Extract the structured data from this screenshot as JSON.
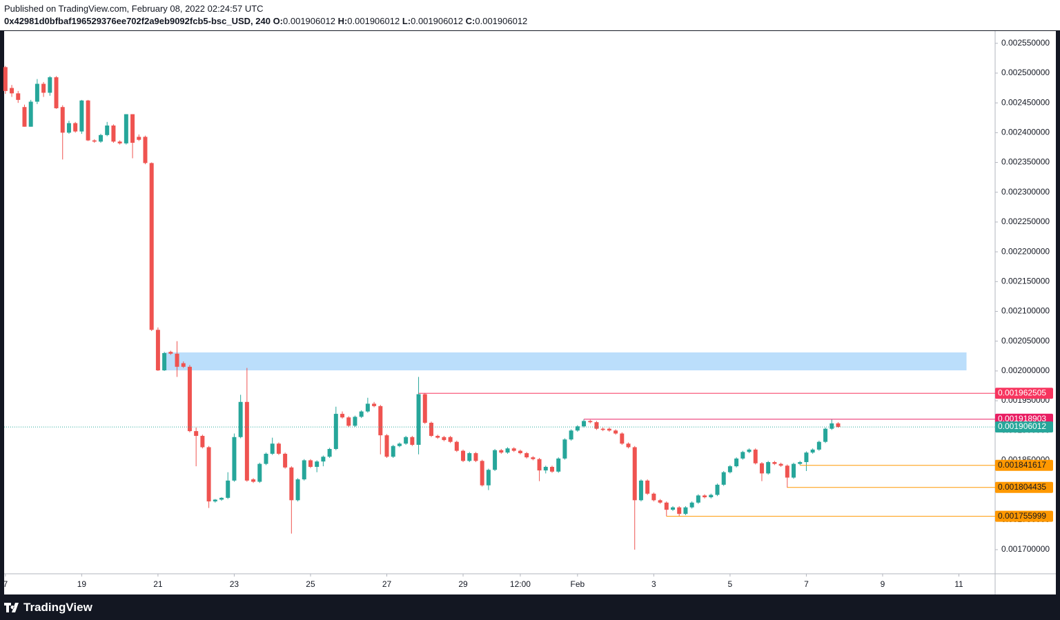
{
  "header": {
    "published": "Published on TradingView.com, February 08, 2022 02:24:57 UTC",
    "symbol": "0x42981d0bfbaf196529376ee702f2a9eb9092fcb5-bsc_USD, 240",
    "ohlc": [
      {
        "label": "O:",
        "value": "0.001906012"
      },
      {
        "label": "H:",
        "value": "0.001906012"
      },
      {
        "label": "L:",
        "value": "0.001906012"
      },
      {
        "label": "C:",
        "value": "0.001906012"
      }
    ]
  },
  "footer": {
    "brand": "TradingView"
  },
  "chart_data": {
    "type": "candlestick",
    "up_color": "#26a69a",
    "down_color": "#ef5350",
    "xlim": [
      -0.2,
      155.7
    ],
    "ylim": [
      0.0016595,
      0.0025706
    ],
    "xticks": [
      {
        "value": 0,
        "label": "7"
      },
      {
        "value": 12,
        "label": "19"
      },
      {
        "value": 24,
        "label": "21"
      },
      {
        "value": 36,
        "label": "23"
      },
      {
        "value": 48,
        "label": "25"
      },
      {
        "value": 60,
        "label": "27"
      },
      {
        "value": 72,
        "label": "29"
      },
      {
        "value": 81,
        "label": "12:00"
      },
      {
        "value": 90,
        "label": "Feb"
      },
      {
        "value": 102,
        "label": "3"
      },
      {
        "value": 114,
        "label": "5"
      },
      {
        "value": 126,
        "label": "7"
      },
      {
        "value": 138,
        "label": "9"
      },
      {
        "value": 150,
        "label": "11"
      }
    ],
    "yticks": [
      {
        "value": 0.0017,
        "label": "0.001700000"
      },
      {
        "value": 0.00175,
        "label": "0.001750000"
      },
      {
        "value": 0.0018,
        "label": "0.001800000"
      },
      {
        "value": 0.00185,
        "label": "0.001850000"
      },
      {
        "value": 0.0019,
        "label": "0.001900000"
      },
      {
        "value": 0.00195,
        "label": "0.001950000"
      },
      {
        "value": 0.002,
        "label": "0.002000000"
      },
      {
        "value": 0.00205,
        "label": "0.002050000"
      },
      {
        "value": 0.0021,
        "label": "0.002100000"
      },
      {
        "value": 0.00215,
        "label": "0.002150000"
      },
      {
        "value": 0.0022,
        "label": "0.002200000"
      },
      {
        "value": 0.00225,
        "label": "0.002250000"
      },
      {
        "value": 0.0023,
        "label": "0.002300000"
      },
      {
        "value": 0.00235,
        "label": "0.002350000"
      },
      {
        "value": 0.0024,
        "label": "0.002400000"
      },
      {
        "value": 0.00245,
        "label": "0.002450000"
      },
      {
        "value": 0.0025,
        "label": "0.002500000"
      },
      {
        "value": 0.00255,
        "label": "0.002550000"
      }
    ],
    "zone": {
      "top": 0.0020311,
      "bottom": 0.002001,
      "start": 25,
      "end": 151.2,
      "color": "#bbdefb"
    },
    "levels": [
      {
        "value": 0.001962505,
        "start": 65,
        "color": "#f7345e",
        "text_color": "#ffffff"
      },
      {
        "value": 0.001918903,
        "start": 91,
        "color": "#e91e63",
        "text_color": "#ffffff"
      },
      {
        "value": 0.001906012,
        "start": -0.2,
        "color": "#26a69a",
        "text_color": "#ffffff",
        "dotted": true
      },
      {
        "value": 0.001841617,
        "start": 125,
        "color": "#ff9800",
        "text_color": "#131722"
      },
      {
        "value": 0.001804435,
        "start": 123,
        "color": "#ff9800",
        "text_color": "#131722"
      },
      {
        "value": 0.001755999,
        "start": 104,
        "color": "#ff9800",
        "text_color": "#131722"
      }
    ],
    "ohlc": [
      [
        0.00251,
        0.002512,
        0.002465,
        0.00247
      ],
      [
        0.002475,
        0.00248,
        0.00246,
        0.002466
      ],
      [
        0.002466,
        0.00247,
        0.00245,
        0.002455
      ],
      [
        0.002443,
        0.002447,
        0.00241,
        0.00241
      ],
      [
        0.00241,
        0.002455,
        0.00241,
        0.002452
      ],
      [
        0.002452,
        0.00249,
        0.002448,
        0.002482
      ],
      [
        0.002482,
        0.002485,
        0.00246,
        0.002467
      ],
      [
        0.002467,
        0.002495,
        0.002462,
        0.002493
      ],
      [
        0.002493,
        0.002495,
        0.00244,
        0.002441
      ],
      [
        0.002443,
        0.002446,
        0.002355,
        0.0024
      ],
      [
        0.0024,
        0.00242,
        0.002398,
        0.002416
      ],
      [
        0.002416,
        0.002418,
        0.0024,
        0.002402
      ],
      [
        0.002402,
        0.002455,
        0.002398,
        0.002454
      ],
      [
        0.002454,
        0.002455,
        0.002386,
        0.002387
      ],
      [
        0.002387,
        0.002389,
        0.002383,
        0.002385
      ],
      [
        0.002385,
        0.002398,
        0.002383,
        0.002396
      ],
      [
        0.002396,
        0.002418,
        0.002394,
        0.002412
      ],
      [
        0.002412,
        0.002414,
        0.002383,
        0.002385
      ],
      [
        0.002385,
        0.002387,
        0.00238,
        0.002382
      ],
      [
        0.002382,
        0.002431,
        0.00238,
        0.002431
      ],
      [
        0.002431,
        0.002431,
        0.002357,
        0.002383
      ],
      [
        0.002393,
        0.002397,
        0.002386,
        0.002388
      ],
      [
        0.002393,
        0.002395,
        0.002347,
        0.002349
      ],
      [
        0.002349,
        0.00235,
        0.002067,
        0.002069
      ],
      [
        0.002069,
        0.002073,
        0.002,
        0.002001
      ],
      [
        0.002001,
        0.002032,
        0.002,
        0.00203
      ],
      [
        0.002032,
        0.002034,
        0.002027,
        0.002029
      ],
      [
        0.002029,
        0.00205,
        0.00199,
        0.002007
      ],
      [
        0.002013,
        0.002016,
        0.002005,
        0.002007
      ],
      [
        0.002007,
        0.00201,
        0.001897,
        0.001899
      ],
      [
        0.001899,
        0.001905,
        0.00184,
        0.001891
      ],
      [
        0.001891,
        0.001893,
        0.00187,
        0.001872
      ],
      [
        0.001872,
        0.001874,
        0.00177,
        0.001781
      ],
      [
        0.001781,
        0.001785,
        0.001779,
        0.001784
      ],
      [
        0.001784,
        0.001788,
        0.001782,
        0.001787
      ],
      [
        0.001787,
        0.00183,
        0.001785,
        0.001816
      ],
      [
        0.001816,
        0.001895,
        0.001814,
        0.001889
      ],
      [
        0.001889,
        0.00196,
        0.001887,
        0.001948
      ],
      [
        0.001948,
        0.002005,
        0.001814,
        0.001816
      ],
      [
        0.001818,
        0.00182,
        0.001812,
        0.001814
      ],
      [
        0.001814,
        0.001846,
        0.001812,
        0.001844
      ],
      [
        0.001844,
        0.001863,
        0.001842,
        0.001861
      ],
      [
        0.001861,
        0.001888,
        0.001859,
        0.001878
      ],
      [
        0.001878,
        0.00188,
        0.001859,
        0.001861
      ],
      [
        0.001861,
        0.001863,
        0.001836,
        0.001838
      ],
      [
        0.001838,
        0.00184,
        0.001727,
        0.001783
      ],
      [
        0.001783,
        0.00182,
        0.001781,
        0.001818
      ],
      [
        0.001818,
        0.001852,
        0.001816,
        0.00185
      ],
      [
        0.00185,
        0.001852,
        0.001837,
        0.001839
      ],
      [
        0.001839,
        0.00185,
        0.00183,
        0.001848
      ],
      [
        0.001848,
        0.001858,
        0.00184,
        0.001856
      ],
      [
        0.001856,
        0.001871,
        0.001854,
        0.001869
      ],
      [
        0.001869,
        0.00194,
        0.001867,
        0.001928
      ],
      [
        0.001928,
        0.001932,
        0.00192,
        0.001922
      ],
      [
        0.001922,
        0.001924,
        0.001906,
        0.001908
      ],
      [
        0.001908,
        0.001925,
        0.001906,
        0.001923
      ],
      [
        0.001923,
        0.001934,
        0.001921,
        0.001932
      ],
      [
        0.001932,
        0.001955,
        0.00193,
        0.001945
      ],
      [
        0.001945,
        0.001948,
        0.001939,
        0.001941
      ],
      [
        0.001941,
        0.001943,
        0.00186,
        0.001892
      ],
      [
        0.001892,
        0.001894,
        0.001854,
        0.001856
      ],
      [
        0.001856,
        0.001876,
        0.001854,
        0.001874
      ],
      [
        0.001874,
        0.00188,
        0.001872,
        0.001878
      ],
      [
        0.001878,
        0.001891,
        0.001876,
        0.001889
      ],
      [
        0.001889,
        0.001891,
        0.001874,
        0.001876
      ],
      [
        0.001876,
        0.00199,
        0.00186,
        0.001961
      ],
      [
        0.001961,
        0.001963,
        0.001911,
        0.001913
      ],
      [
        0.001913,
        0.001915,
        0.001889,
        0.001891
      ],
      [
        0.001891,
        0.001893,
        0.001886,
        0.001888
      ],
      [
        0.001889,
        0.001891,
        0.001882,
        0.001884
      ],
      [
        0.001889,
        0.001891,
        0.001879,
        0.001881
      ],
      [
        0.001881,
        0.001883,
        0.001864,
        0.001866
      ],
      [
        0.001866,
        0.001868,
        0.001847,
        0.001849
      ],
      [
        0.001849,
        0.001864,
        0.001847,
        0.001862
      ],
      [
        0.001862,
        0.001864,
        0.001847,
        0.001849
      ],
      [
        0.001849,
        0.001851,
        0.001806,
        0.001808
      ],
      [
        0.001808,
        0.001836,
        0.0018,
        0.001834
      ],
      [
        0.001834,
        0.001869,
        0.001832,
        0.001867
      ],
      [
        0.001867,
        0.001869,
        0.001861,
        0.001863
      ],
      [
        0.001863,
        0.001872,
        0.001861,
        0.00187
      ],
      [
        0.00187,
        0.001872,
        0.001864,
        0.001866
      ],
      [
        0.001866,
        0.001868,
        0.00186,
        0.001862
      ],
      [
        0.001862,
        0.001864,
        0.001853,
        0.001855
      ],
      [
        0.001855,
        0.001857,
        0.00185,
        0.001852
      ],
      [
        0.001852,
        0.001854,
        0.001815,
        0.001833
      ],
      [
        0.001833,
        0.001841,
        0.001828,
        0.001839
      ],
      [
        0.001839,
        0.001841,
        0.001829,
        0.001831
      ],
      [
        0.001831,
        0.001855,
        0.001829,
        0.001853
      ],
      [
        0.001853,
        0.001887,
        0.001851,
        0.001885
      ],
      [
        0.001885,
        0.001902,
        0.001883,
        0.0019
      ],
      [
        0.0019,
        0.001909,
        0.001898,
        0.001907
      ],
      [
        0.001907,
        0.001919,
        0.001905,
        0.001916
      ],
      [
        0.001916,
        0.001918,
        0.001912,
        0.001914
      ],
      [
        0.001914,
        0.001916,
        0.001901,
        0.001903
      ],
      [
        0.001903,
        0.001905,
        0.001899,
        0.001901
      ],
      [
        0.001903,
        0.001905,
        0.001898,
        0.0019
      ],
      [
        0.0019,
        0.001902,
        0.001893,
        0.001895
      ],
      [
        0.001895,
        0.001897,
        0.001876,
        0.001878
      ],
      [
        0.001878,
        0.00188,
        0.00187,
        0.001872
      ],
      [
        0.001872,
        0.001874,
        0.0017,
        0.001783
      ],
      [
        0.001783,
        0.001818,
        0.001781,
        0.001816
      ],
      [
        0.001816,
        0.001818,
        0.001792,
        0.001794
      ],
      [
        0.001794,
        0.001796,
        0.001781,
        0.001783
      ],
      [
        0.001783,
        0.001785,
        0.001777,
        0.001779
      ],
      [
        0.001779,
        0.001781,
        0.001756,
        0.001767
      ],
      [
        0.001767,
        0.001773,
        0.001765,
        0.001771
      ],
      [
        0.001771,
        0.001773,
        0.001756,
        0.00176
      ],
      [
        0.00176,
        0.001773,
        0.001758,
        0.001771
      ],
      [
        0.001771,
        0.001781,
        0.001769,
        0.001779
      ],
      [
        0.001779,
        0.001793,
        0.001777,
        0.001791
      ],
      [
        0.001791,
        0.001793,
        0.001786,
        0.001788
      ],
      [
        0.001788,
        0.001794,
        0.001786,
        0.001792
      ],
      [
        0.001792,
        0.001811,
        0.00179,
        0.001809
      ],
      [
        0.001809,
        0.001832,
        0.001807,
        0.00183
      ],
      [
        0.00183,
        0.001842,
        0.001828,
        0.00184
      ],
      [
        0.00184,
        0.001855,
        0.001838,
        0.001853
      ],
      [
        0.001853,
        0.001866,
        0.001851,
        0.001864
      ],
      [
        0.001864,
        0.00187,
        0.001862,
        0.001868
      ],
      [
        0.001868,
        0.00187,
        0.001843,
        0.001845
      ],
      [
        0.001845,
        0.001847,
        0.001815,
        0.001828
      ],
      [
        0.001828,
        0.001849,
        0.001826,
        0.001847
      ],
      [
        0.001847,
        0.001849,
        0.001842,
        0.001844
      ],
      [
        0.001844,
        0.001846,
        0.001839,
        0.001841
      ],
      [
        0.001841,
        0.001843,
        0.001804,
        0.001821
      ],
      [
        0.001821,
        0.001846,
        0.001819,
        0.001844
      ],
      [
        0.001844,
        0.001849,
        0.001842,
        0.001847
      ],
      [
        0.001847,
        0.001865,
        0.001832,
        0.001863
      ],
      [
        0.001863,
        0.00187,
        0.001861,
        0.001868
      ],
      [
        0.001868,
        0.001883,
        0.001866,
        0.001881
      ],
      [
        0.001881,
        0.001905,
        0.001879,
        0.001903
      ],
      [
        0.001903,
        0.001919,
        0.001901,
        0.001912
      ],
      [
        0.001912,
        0.001914,
        0.001905,
        0.001906
      ]
    ]
  }
}
